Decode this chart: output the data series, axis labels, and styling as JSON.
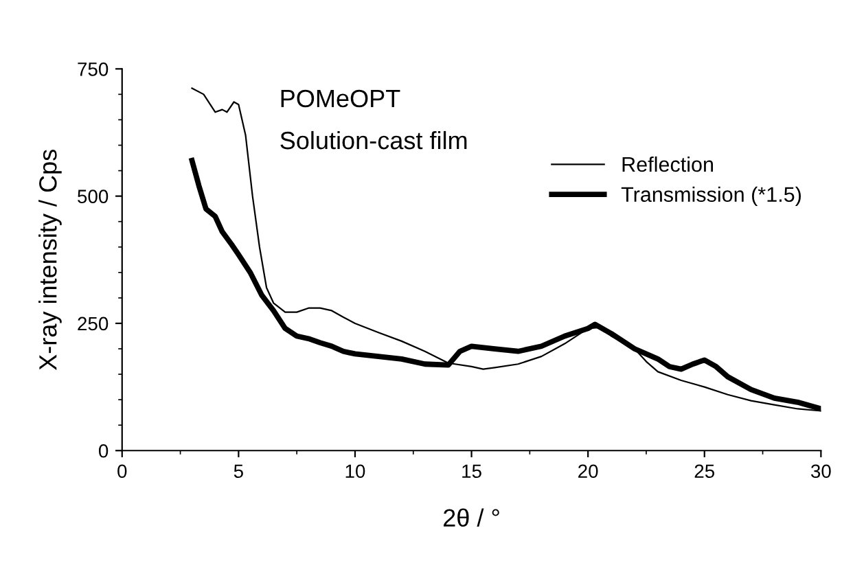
{
  "chart_data": {
    "type": "line",
    "xlabel": "2θ / °",
    "ylabel": "X-ray intensity / Cps",
    "annotations": [
      "POMeOPT",
      "Solution-cast film"
    ],
    "xlim": [
      0,
      30
    ],
    "xticks": [
      0,
      5,
      10,
      15,
      20,
      25,
      30
    ],
    "ylim": [
      0,
      750
    ],
    "yticks": [
      0,
      250,
      500,
      750
    ],
    "grid": false,
    "legend": "upper right",
    "marker": "none",
    "line_style": "solid",
    "series": [
      {
        "name": "Reflection",
        "color": "#000000",
        "x": [
          3,
          3.5,
          4,
          4.3,
          4.5,
          4.8,
          5.0,
          5.3,
          5.6,
          5.9,
          6.2,
          6.5,
          7.0,
          7.5,
          8,
          8.5,
          9,
          9.5,
          10,
          11,
          12,
          13,
          14,
          15,
          15.5,
          16,
          17,
          18,
          19,
          20,
          20.5,
          21,
          22,
          22.5,
          23,
          24,
          25,
          26,
          27,
          28,
          29,
          30
        ],
        "values": [
          712,
          700,
          665,
          670,
          665,
          685,
          680,
          620,
          500,
          400,
          320,
          290,
          272,
          272,
          280,
          280,
          275,
          262,
          250,
          232,
          215,
          195,
          172,
          165,
          160,
          163,
          170,
          185,
          210,
          240,
          242,
          225,
          200,
          175,
          155,
          138,
          125,
          110,
          98,
          90,
          82,
          78
        ]
      },
      {
        "name": "Transmission (*1.5)",
        "color": "#000000",
        "x": [
          3,
          3.3,
          3.6,
          4,
          4.3,
          4.7,
          5,
          5.5,
          6,
          6.5,
          7,
          7.5,
          8,
          8.5,
          9,
          9.5,
          10,
          11,
          12,
          13,
          14,
          14.5,
          15,
          16,
          17,
          18,
          19,
          20,
          20.3,
          21,
          22,
          23,
          23.5,
          24,
          24.5,
          25,
          25.5,
          26,
          27,
          28,
          29,
          30
        ],
        "values": [
          570,
          520,
          475,
          460,
          430,
          405,
          385,
          350,
          305,
          275,
          240,
          225,
          220,
          212,
          205,
          195,
          190,
          185,
          180,
          170,
          168,
          195,
          205,
          200,
          195,
          205,
          225,
          240,
          248,
          230,
          200,
          180,
          165,
          160,
          170,
          178,
          165,
          145,
          120,
          103,
          95,
          82
        ]
      }
    ]
  }
}
